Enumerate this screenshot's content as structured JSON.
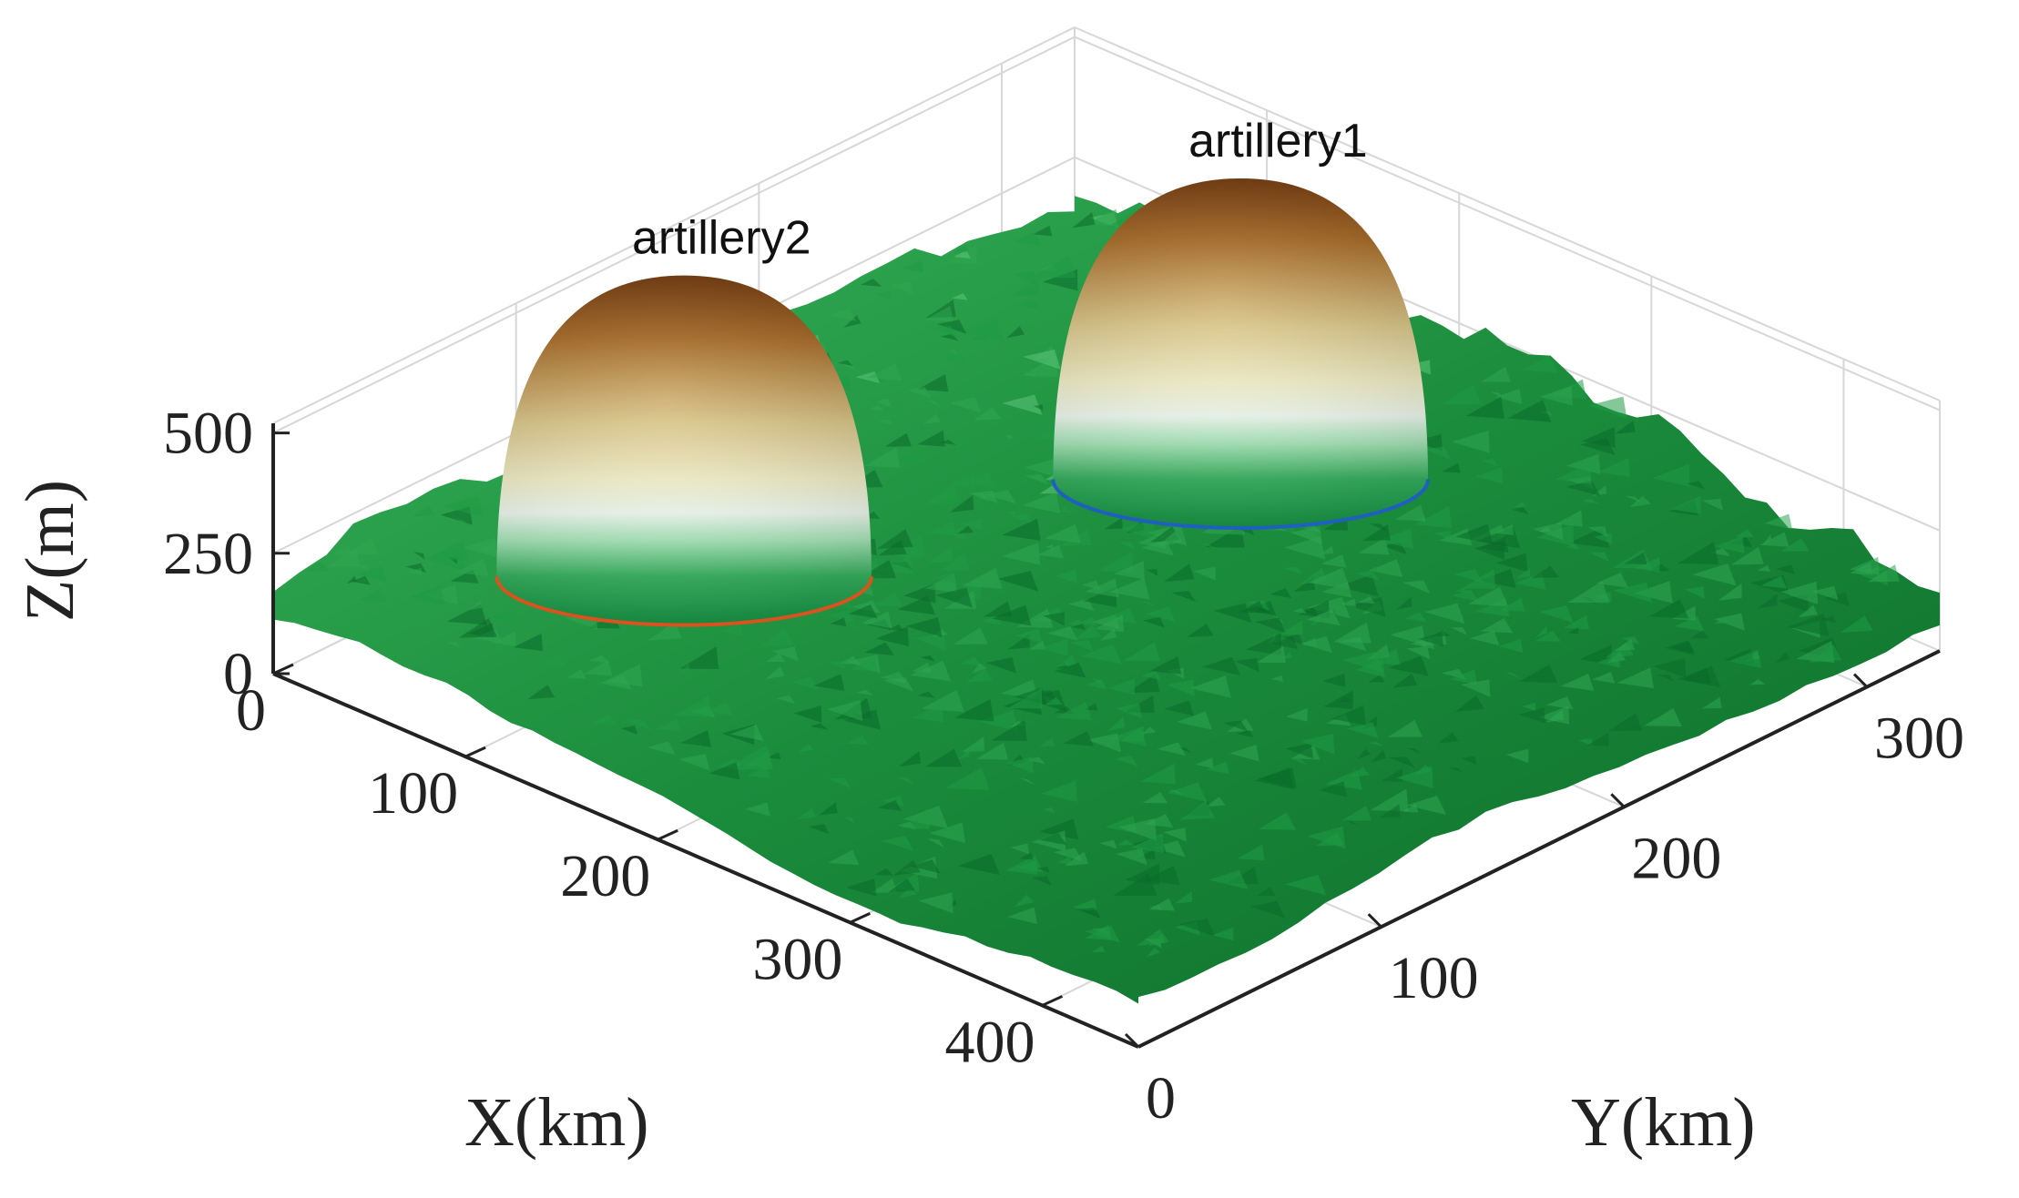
{
  "chart_data": {
    "type": "surface3d",
    "title": "",
    "xlabel": "X(km)",
    "ylabel": "Y(km)",
    "zlabel": "Z(m)",
    "xlim": [
      0,
      450
    ],
    "ylim": [
      0,
      330
    ],
    "zlim": [
      0,
      520
    ],
    "xticks": [
      0,
      100,
      200,
      300,
      400
    ],
    "yticks": [
      0,
      100,
      200,
      300
    ],
    "zticks": [
      0,
      250,
      500
    ],
    "grid": true,
    "surface": {
      "description_colormap": "green terrain",
      "z_range": [
        50,
        250
      ]
    },
    "domes": [
      {
        "name": "artillery1",
        "label": "artillery1",
        "x": 200,
        "y": 240,
        "radius": 55,
        "height": 500,
        "base_ring_color": "#1f5fbf"
      },
      {
        "name": "artillery2",
        "label": "artillery2",
        "x": 100,
        "y": 90,
        "radius": 55,
        "height": 500,
        "base_ring_color": "#d9531e"
      }
    ],
    "colors": {
      "terrain_dark": "#0a6b2a",
      "terrain_mid": "#1f9a45",
      "terrain_light": "#9fe3b0",
      "dome_top": "#7a3a05",
      "dome_mid": "#e9e3a6",
      "dome_band": "#f2fff2",
      "dome_bottom": "#1e9f4a"
    }
  }
}
